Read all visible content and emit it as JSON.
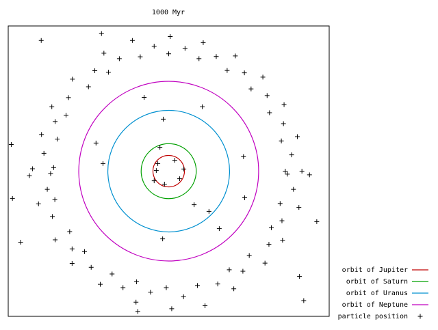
{
  "chart_data": {
    "type": "scatter",
    "title": "1000 Myr",
    "xlim": [
      -53,
      53
    ],
    "ylim": [
      -48,
      48
    ],
    "circles": [
      {
        "name": "orbit of Jupiter",
        "color": "#c00000",
        "radius": 5.2
      },
      {
        "name": "orbit of Saturn",
        "color": "#00a000",
        "radius": 9.1
      },
      {
        "name": "orbit of Uranus",
        "color": "#0090d0",
        "radius": 20.1
      },
      {
        "name": "orbit of Neptune",
        "color": "#c000c0",
        "radius": 29.7
      }
    ],
    "series": [
      {
        "name": "particle position",
        "color": "#000000",
        "x": [
          38.5,
          37.2,
          33.3,
          27.2,
          19.3,
          10.0,
          44,
          42.5,
          38.1,
          31.1,
          22,
          11.4,
          40.6,
          37.9,
          32.5,
          25,
          15.7,
          5.4,
          -38,
          -36.8,
          -33.9,
          -26.5,
          -19.9,
          -9.4,
          -45,
          -42,
          -38.6,
          -31.8,
          -21.4,
          -12,
          -41.2,
          -37.5,
          -33.1,
          -24.4,
          -16.3,
          -4.8,
          -39,
          -37.6,
          -32.7,
          -27.8,
          -18.7,
          -10.6,
          -46,
          -43,
          -37.5,
          -31.9,
          -22.6,
          -10.8,
          -40.1,
          -38.4,
          -31.9,
          -25.6,
          -15.1,
          -6,
          39.2,
          36.8,
          33.9,
          26.6,
          20,
          9.5,
          46.5,
          43,
          37.6,
          31.8,
          21.5,
          12,
          41.2,
          37.4,
          33.1,
          24.5,
          16.2,
          4.9,
          0,
          0.5,
          -0.8,
          1,
          -22.2,
          -42.1,
          -52,
          -51.6,
          -48.9,
          48.9,
          43.2,
          44.6,
          -10.2,
          -8.1,
          11.1,
          -1.8,
          -2.9,
          8.4,
          13.3,
          16.7,
          -2,
          -24,
          24.7,
          25.1,
          -21.7,
          -3.6,
          2,
          -4.8,
          3.6,
          -1.4,
          5,
          -4.1
        ],
        "y": [
          0,
          10.0,
          19.3,
          27.2,
          33.3,
          37.2,
          0,
          11.4,
          22,
          31.1,
          38.1,
          42.5,
          5.4,
          15.7,
          25,
          32.5,
          37.9,
          40.6,
          1.2,
          10.6,
          18.5,
          27.9,
          32.7,
          37.8,
          0.8,
          12.1,
          21.3,
          30.4,
          39,
          43.2,
          5.9,
          16.4,
          24.3,
          33.2,
          37.2,
          41.3,
          -0.8,
          -9.4,
          -20,
          -26.6,
          -34,
          -36.6,
          -1.5,
          -10.8,
          -22.7,
          -30.5,
          -37.4,
          -43.3,
          -6,
          -15,
          -25.7,
          -31.8,
          -38.5,
          -40,
          -1,
          -10.7,
          -18.7,
          -27.9,
          -32.6,
          -37.8,
          -1.2,
          -12,
          -22.8,
          -30.4,
          -38.9,
          -44.5,
          -6,
          -16.4,
          -24.2,
          -33.1,
          -37.3,
          -41.5,
          38.8,
          44.5,
          -38.5,
          -45.5,
          45.5,
          43.2,
          8.8,
          -9,
          -23.5,
          -16.7,
          -34.8,
          -42.8,
          -46.4,
          24.4,
          21.3,
          17.2,
          7.9,
          -11.1,
          -13.3,
          -19,
          -22.4,
          9.3,
          4.8,
          -8.8,
          2.5,
          2.5,
          3.6,
          -3.2,
          -2.5,
          -4.3,
          0.7,
          0.2
        ]
      }
    ]
  }
}
